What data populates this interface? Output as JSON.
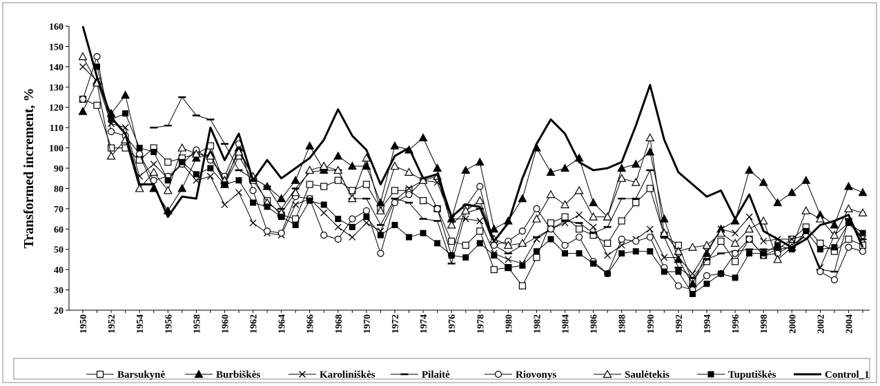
{
  "chart_data": {
    "type": "line",
    "y_label": "Transformed increment, %",
    "categories": [
      "1950",
      null,
      "1952",
      null,
      "1954",
      null,
      "1956",
      null,
      "1958",
      null,
      "1960",
      null,
      "1962",
      null,
      "1964",
      null,
      "1966",
      null,
      "1968",
      null,
      "1970",
      null,
      "1972",
      null,
      "1974",
      null,
      "1976",
      null,
      "1978",
      null,
      "1980",
      null,
      "1982",
      null,
      "1984",
      null,
      "1986",
      null,
      "1988",
      null,
      "1990",
      null,
      "1992",
      null,
      "1994",
      null,
      "1996",
      null,
      "1998",
      null,
      "2000",
      null,
      "2002",
      null,
      "2004",
      null
    ],
    "ylim": [
      20,
      160
    ],
    "yticks": [
      20,
      30,
      40,
      50,
      60,
      70,
      80,
      90,
      100,
      110,
      120,
      130,
      140,
      150,
      160
    ],
    "grid": false,
    "legend": "bottom",
    "series": [
      {
        "name": "Barsukynė",
        "color": "#000000",
        "marker": "square-open",
        "line_width": 1,
        "values": [
          124,
          121,
          100,
          100,
          94,
          100,
          93,
          95,
          97,
          101,
          82,
          96,
          84,
          74,
          67,
          65,
          82,
          81,
          84,
          79,
          82,
          70,
          79,
          79,
          74,
          70,
          54,
          52,
          59,
          40,
          41,
          32,
          46,
          63,
          66,
          60,
          57,
          53,
          64,
          73,
          80,
          57,
          52,
          34,
          44,
          54,
          44,
          55,
          47,
          50,
          55,
          61,
          53,
          49,
          55,
          52
        ]
      },
      {
        "name": "Burbiškės",
        "color": "#000000",
        "marker": "triangle-filled",
        "line_width": 1,
        "values": [
          118,
          133,
          117,
          126,
          97,
          80,
          69,
          80,
          95,
          97,
          82,
          100,
          85,
          81,
          75,
          84,
          101,
          89,
          96,
          91,
          91,
          73,
          101,
          99,
          105,
          90,
          65,
          89,
          93,
          60,
          64,
          75,
          100,
          88,
          90,
          95,
          73,
          66,
          90,
          92,
          98,
          65,
          45,
          33,
          48,
          60,
          64,
          89,
          83,
          73,
          78,
          84,
          67,
          62,
          81,
          78
        ]
      },
      {
        "name": "Karoliniškės",
        "color": "#000000",
        "marker": "cross",
        "line_width": 1,
        "values": [
          140,
          133,
          112,
          110,
          86,
          92,
          85,
          92,
          84,
          86,
          72,
          78,
          63,
          58,
          57,
          72,
          75,
          68,
          61,
          56,
          63,
          59,
          74,
          80,
          84,
          83,
          65,
          65,
          64,
          48,
          45,
          43,
          55,
          60,
          63,
          67,
          61,
          47,
          52,
          55,
          60,
          46,
          46,
          38,
          49,
          60,
          58,
          66,
          54,
          55,
          55,
          57,
          41,
          57,
          63,
          55
        ]
      },
      {
        "name": "Pilaitė",
        "color": "#000000",
        "marker": "dash",
        "line_width": 1,
        "values": [
          null,
          null,
          null,
          null,
          null,
          110,
          111,
          125,
          116,
          114,
          102,
          89,
          85,
          81,
          70,
          80,
          88,
          89,
          89,
          75,
          75,
          62,
          75,
          73,
          65,
          64,
          43,
          68,
          70,
          52,
          48,
          52,
          56,
          60,
          64,
          63,
          58,
          61,
          75,
          75,
          89,
          56,
          41,
          36,
          45,
          48,
          49,
          50,
          50,
          50,
          51,
          57,
          40,
          39,
          65,
          55
        ]
      },
      {
        "name": "Riovonys",
        "color": "#000000",
        "marker": "circle-open",
        "line_width": 1,
        "values": [
          124,
          145,
          108,
          106,
          97,
          84,
          86,
          92,
          99,
          94,
          86,
          102,
          79,
          59,
          58,
          76,
          75,
          57,
          55,
          65,
          69,
          48,
          73,
          77,
          84,
          70,
          47,
          71,
          81,
          52,
          54,
          59,
          70,
          60,
          52,
          56,
          44,
          38,
          55,
          54,
          56,
          41,
          32,
          30,
          37,
          38,
          48,
          55,
          47,
          48,
          52,
          57,
          39,
          35,
          51,
          49
        ]
      },
      {
        "name": "Saulėtekis",
        "color": "#000000",
        "marker": "triangle-open",
        "line_width": 1,
        "values": [
          145,
          132,
          96,
          104,
          80,
          88,
          79,
          100,
          97,
          96,
          84,
          98,
          86,
          73,
          68,
          78,
          89,
          91,
          89,
          75,
          95,
          69,
          91,
          88,
          84,
          86,
          62,
          69,
          74,
          55,
          52,
          53,
          65,
          77,
          72,
          79,
          66,
          66,
          85,
          83,
          105,
          58,
          49,
          51,
          52,
          58,
          53,
          60,
          64,
          45,
          51,
          69,
          65,
          57,
          70,
          68
        ]
      },
      {
        "name": "Tuputiškės",
        "color": "#000000",
        "marker": "square-filled",
        "line_width": 1,
        "values": [
          null,
          140,
          114,
          117,
          100,
          98,
          84,
          93,
          87,
          90,
          82,
          84,
          73,
          71,
          66,
          62,
          74,
          72,
          65,
          61,
          66,
          57,
          62,
          56,
          58,
          53,
          47,
          46,
          53,
          47,
          41,
          42,
          49,
          55,
          48,
          48,
          43,
          38,
          48,
          49,
          49,
          39,
          39,
          28,
          33,
          38,
          36,
          48,
          48,
          52,
          50,
          59,
          50,
          51,
          63,
          58
        ]
      },
      {
        "name": "Control_1",
        "color": "#000000",
        "marker": "none",
        "line_width": 3,
        "values": [
          160,
          135,
          115,
          107,
          82,
          82,
          66,
          76,
          75,
          110,
          94,
          107,
          84,
          94,
          85,
          90,
          95,
          104,
          119,
          106,
          99,
          82,
          96,
          100,
          85,
          87,
          66,
          72,
          71,
          54,
          63,
          85,
          102,
          114,
          107,
          93,
          89,
          90,
          93,
          111,
          131,
          104,
          88,
          82,
          76,
          79,
          65,
          77,
          59,
          55,
          51,
          55,
          62,
          64,
          67,
          51
        ]
      }
    ]
  }
}
